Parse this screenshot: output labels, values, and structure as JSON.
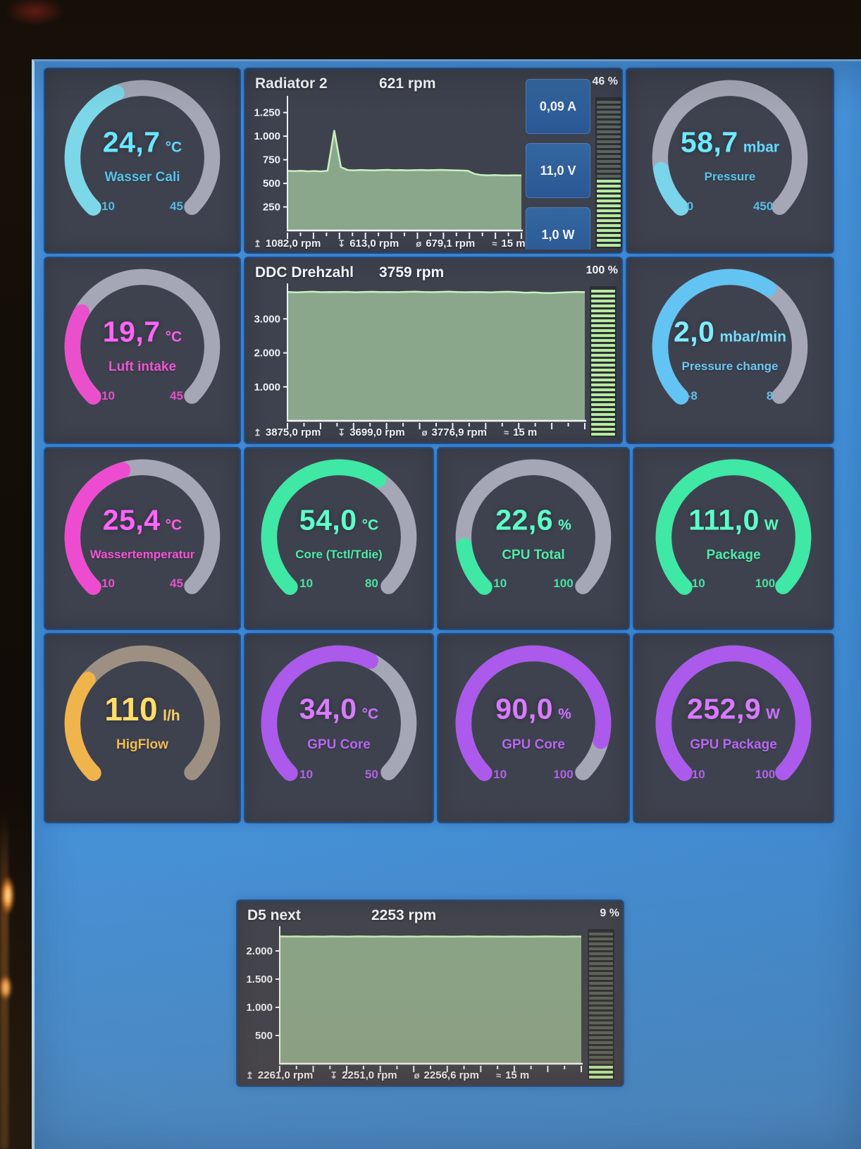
{
  "screen": {
    "desktop_color": "#4896de",
    "tile_color": "#3e424e",
    "tile_border": "#1d4e8e"
  },
  "icon_glyphs": {
    "max": "↥",
    "min": "↧",
    "avg": "ø",
    "time": "≈"
  },
  "gauges": [
    {
      "id": "wasser-cali",
      "value": "24,7",
      "unit": "°C",
      "label": "Wasser Cali",
      "min_label": "10",
      "max_label": "45",
      "value_num": 24.7,
      "min": 10,
      "max": 45,
      "arc_color": "#7cd8e8",
      "text_color": "#58c4ec",
      "track_color": "#a6a7b6"
    },
    {
      "id": "pressure",
      "value": "58,7",
      "unit": "mbar",
      "label": "Pressure",
      "min_label": "0",
      "max_label": "450",
      "value_num": 58.7,
      "min": 0,
      "max": 450,
      "arc_color": "#7ad4ea",
      "text_color": "#5cc6ee",
      "track_color": "#a6a7b6"
    },
    {
      "id": "luft-intake",
      "value": "19,7",
      "unit": "°C",
      "label": "Luft intake",
      "min_label": "10",
      "max_label": "45",
      "value_num": 19.7,
      "min": 10,
      "max": 45,
      "arc_color": "#ea50cc",
      "text_color": "#f055d4",
      "track_color": "#a6a7b6"
    },
    {
      "id": "pressure-change",
      "value": "2,0",
      "unit": "mbar/min",
      "label": "Pressure change",
      "min_label": "-8",
      "max_label": "8",
      "value_num": 2.0,
      "min": -8,
      "max": 8,
      "arc_color": "#63c3f2",
      "text_color": "#6cc8f4",
      "track_color": "#a6a7b6"
    },
    {
      "id": "wassertemperatur",
      "value": "25,4",
      "unit": "°C",
      "label": "Wassertemperatur",
      "min_label": "10",
      "max_label": "45",
      "value_num": 25.4,
      "min": 10,
      "max": 45,
      "arc_color": "#ee4cd0",
      "text_color": "#f455d6",
      "track_color": "#a6a7b6"
    },
    {
      "id": "core-tctl-tdie",
      "value": "54,0",
      "unit": "°C",
      "label": "Core (Tctl/Tdie)",
      "min_label": "10",
      "max_label": "80",
      "value_num": 54.0,
      "min": 10,
      "max": 80,
      "arc_color": "#3fe8a4",
      "text_color": "#4fecac",
      "track_color": "#a6a7b6"
    },
    {
      "id": "cpu-total",
      "value": "22,6",
      "unit": "%",
      "label": "CPU Total",
      "min_label": "10",
      "max_label": "100",
      "value_num": 22.6,
      "min": 10,
      "max": 100,
      "arc_color": "#3fe8a4",
      "text_color": "#4fecac",
      "track_color": "#a6a7b6"
    },
    {
      "id": "package",
      "value": "111,0",
      "unit": "W",
      "label": "Package",
      "min_label": "10",
      "max_label": "100",
      "value_num": 111.0,
      "min": 10,
      "max": 100,
      "arc_color": "#3fe8a4",
      "text_color": "#4fecac",
      "track_color": "#a6a7b6"
    },
    {
      "id": "higflow",
      "value": "110",
      "unit": "l/h",
      "label": "HigFlow",
      "min_label": "",
      "max_label": "",
      "value_num": 110,
      "min": null,
      "max": null,
      "fill_pct": 0.31,
      "arc_color": "#f0b44c",
      "text_color": "#f3bc58",
      "track_color": "#9d9083"
    },
    {
      "id": "gpu-core-temp",
      "value": "34,0",
      "unit": "°C",
      "label": "GPU Core",
      "min_label": "10",
      "max_label": "50",
      "value_num": 34.0,
      "min": 10,
      "max": 50,
      "arc_color": "#ab5aec",
      "text_color": "#b868f2",
      "track_color": "#a6a7b6"
    },
    {
      "id": "gpu-core-load",
      "value": "90,0",
      "unit": "%",
      "label": "GPU Core",
      "min_label": "10",
      "max_label": "100",
      "value_num": 90.0,
      "min": 10,
      "max": 100,
      "arc_color": "#ab5aec",
      "text_color": "#b868f2",
      "track_color": "#a6a7b6"
    },
    {
      "id": "gpu-package",
      "value": "252,9",
      "unit": "W",
      "label": "GPU Package",
      "min_label": "10",
      "max_label": "100",
      "value_num": 252.9,
      "min": 10,
      "max": 100,
      "arc_color": "#ab5aec",
      "text_color": "#b868f2",
      "track_color": "#a6a7b6"
    }
  ],
  "chart_data": [
    {
      "type": "area",
      "title": "Radiator 2",
      "value_text": "621 rpm",
      "unit": "rpm",
      "percent_label": "46 %",
      "meter_percent": 46,
      "ylim": [
        0,
        1375
      ],
      "ytick_values": [
        1250,
        1000,
        750,
        500,
        250
      ],
      "ytick_labels": [
        "1.250",
        "1.000",
        "750",
        "500",
        "250"
      ],
      "series": [
        632,
        630,
        634,
        628,
        631,
        627,
        633,
        1058,
        672,
        641,
        638,
        642,
        639,
        637,
        641,
        643,
        639,
        641,
        638,
        640,
        642,
        639,
        641,
        643,
        640,
        638,
        636,
        634,
        600,
        588,
        585,
        587,
        585,
        584,
        586,
        584
      ],
      "stats": [
        {
          "icon": "max",
          "text": "1082,0 rpm"
        },
        {
          "icon": "min",
          "text": "613,0 rpm"
        },
        {
          "icon": "avg",
          "text": "679,1 rpm"
        },
        {
          "icon": "time",
          "text": "15 m"
        }
      ],
      "info_boxes": [
        "0,09 A",
        "11,0 V",
        "1,0 W"
      ],
      "line_color": "#c9f0bd",
      "fill_color": "#8aa78b",
      "meter_on": "#b6eb9e",
      "meter_off": "#59645a"
    },
    {
      "type": "area",
      "title": "DDC Drehzahl",
      "value_text": "3759 rpm",
      "unit": "rpm",
      "percent_label": "100 %",
      "meter_percent": 100,
      "ylim": [
        0,
        3900
      ],
      "ytick_values": [
        3000,
        2000,
        1000
      ],
      "ytick_labels": [
        "3.000",
        "2.000",
        "1.000"
      ],
      "series": [
        3795,
        3782,
        3790,
        3800,
        3786,
        3793,
        3789,
        3796,
        3784,
        3791,
        3798,
        3787,
        3793,
        3785,
        3796,
        3801,
        3790,
        3786,
        3794,
        3803,
        3791,
        3785,
        3793,
        3788,
        3780,
        3794,
        3799,
        3789,
        3772,
        3781,
        3766,
        3758,
        3774,
        3784,
        3794,
        3789
      ],
      "stats": [
        {
          "icon": "max",
          "text": "3875,0 rpm"
        },
        {
          "icon": "min",
          "text": "3699,0 rpm"
        },
        {
          "icon": "avg",
          "text": "3776,9 rpm"
        },
        {
          "icon": "time",
          "text": "15 m"
        }
      ],
      "info_boxes": [],
      "line_color": "#c9f0bd",
      "fill_color": "#8aa78b",
      "meter_on": "#b6eb9e",
      "meter_off": "#59645a"
    },
    {
      "type": "area",
      "title": "D5 next",
      "value_text": "2253 rpm",
      "unit": "rpm",
      "percent_label": "9 %",
      "meter_percent": 9,
      "ylim": [
        0,
        2350
      ],
      "ytick_values": [
        2000,
        1500,
        1000,
        500
      ],
      "ytick_labels": [
        "2.000",
        "1.500",
        "1.000",
        "500"
      ],
      "series": [
        2257,
        2255,
        2258,
        2254,
        2256,
        2253,
        2257,
        2255,
        2254,
        2257,
        2256,
        2254,
        2257,
        2255,
        2253,
        2256,
        2254,
        2257,
        2255,
        2256,
        2254,
        2255,
        2257,
        2254,
        2256,
        2255,
        2253,
        2256,
        2255,
        2254,
        2256,
        2257,
        2255,
        2254,
        2256,
        2255
      ],
      "stats": [
        {
          "icon": "max",
          "text": "2261,0 rpm"
        },
        {
          "icon": "min",
          "text": "2251,0 rpm"
        },
        {
          "icon": "avg",
          "text": "2256,6 rpm"
        },
        {
          "icon": "time",
          "text": "15 m"
        }
      ],
      "info_boxes": [],
      "line_color": "#c9f0bd",
      "fill_color": "#8aa78b",
      "meter_on": "#b6eb9e",
      "meter_off": "#59645a"
    }
  ]
}
